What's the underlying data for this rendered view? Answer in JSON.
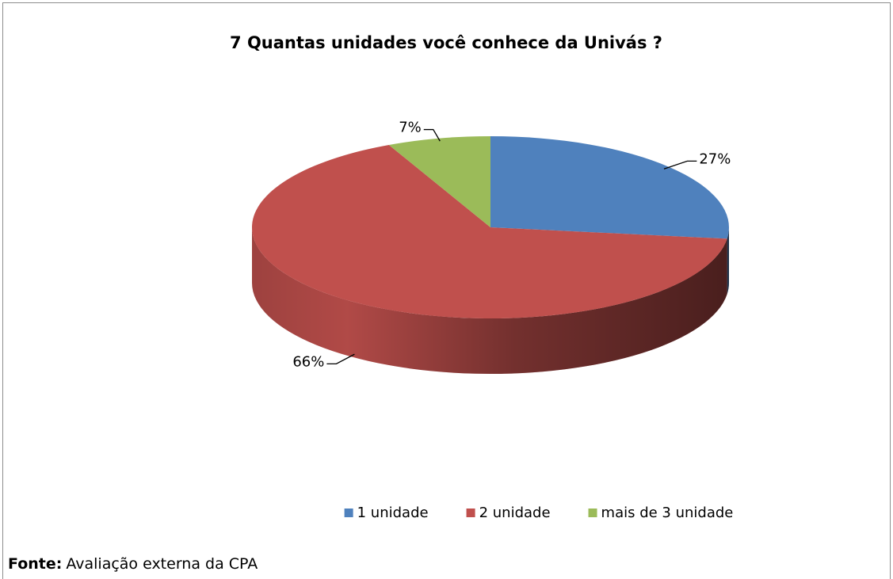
{
  "chart_data": {
    "type": "pie",
    "title": "7  Quantas unidades você conhece da Univás ?",
    "categories": [
      "1 unidade",
      "2 unidade",
      "mais de 3 unidade"
    ],
    "values": [
      27,
      66,
      7
    ],
    "value_labels": [
      "27%",
      "66%",
      "7%"
    ],
    "colors": [
      "#4f81bd",
      "#c0504d",
      "#9bbb59"
    ],
    "legend": "bottom"
  },
  "source": {
    "label": "Fonte:",
    "text": "Avaliação externa da CPA"
  }
}
